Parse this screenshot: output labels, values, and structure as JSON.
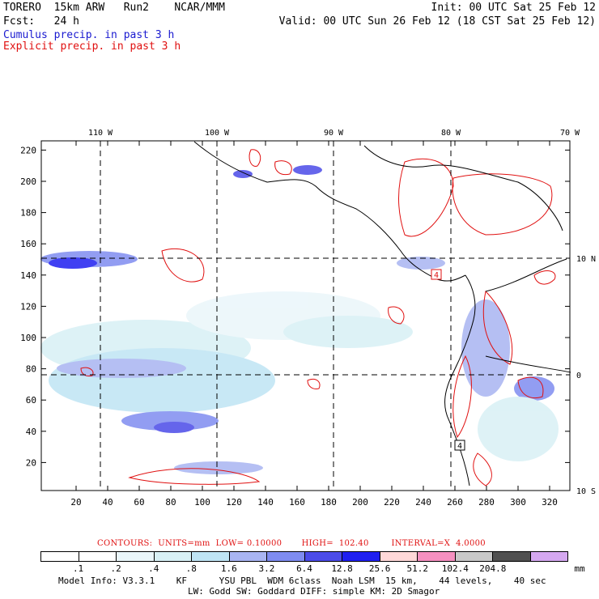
{
  "header": {
    "model": "TORERO  15km ARW   Run2    NCAR/MMM",
    "init": "Init: 00 UTC Sat 25 Feb 12",
    "fcst": "Fcst:   24 h",
    "valid": "Valid: 00 UTC Sun 26 Feb 12 (18 CST Sat 25 Feb 12)",
    "cumulus": "Cumulus precip. in past 3 h",
    "explicit": "Explicit precip. in past 3 h"
  },
  "map": {
    "lon_labels": [
      "110 W",
      "100 W",
      "90 W",
      "80 W",
      "70 W"
    ],
    "lat_labels": [
      "10 N",
      "0",
      "10 S"
    ],
    "x_ticks": [
      "20",
      "40",
      "60",
      "80",
      "100",
      "120",
      "140",
      "160",
      "180",
      "200",
      "220",
      "240",
      "260",
      "280",
      "300",
      "320"
    ],
    "y_ticks": [
      "20",
      "40",
      "60",
      "80",
      "100",
      "120",
      "140",
      "160",
      "180",
      "200",
      "220"
    ],
    "box_labels": [
      "4",
      "4"
    ]
  },
  "contours_line": "CONTOURS:  UNITS=mm  LOW= 0.10000       HIGH=  102.40        INTERVAL=X  4.0000",
  "colorbar": {
    "labels": [
      ".1",
      ".2",
      ".4",
      ".8",
      "1.6",
      "3.2",
      "6.4",
      "12.8",
      "25.6",
      "51.2",
      "102.4",
      "204.8"
    ],
    "units": "mm",
    "colors": [
      "#ffffff",
      "#ffffff",
      "#eaf6fa",
      "#d8f0f5",
      "#bfe4f4",
      "#a9b5f2",
      "#7f8cf0",
      "#4b4be8",
      "#1f1ff0",
      "#ffd8d8",
      "#f590c0",
      "#c8c8c8",
      "#505050",
      "#d5a8f0"
    ]
  },
  "footer": {
    "line1": "Model Info: V3.3.1    KF      YSU PBL  WDM 6class  Noah LSM  15 km,    44 levels,    40 sec",
    "line2": "LW: Godd SW: Goddard DIFF: simple KM: 2D Smagor"
  }
}
